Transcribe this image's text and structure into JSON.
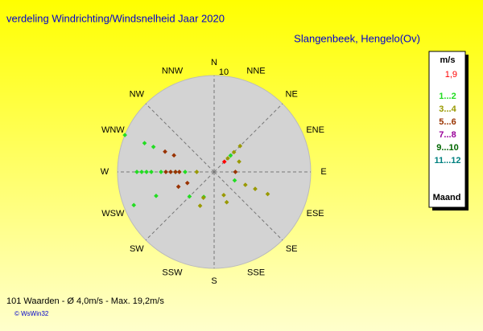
{
  "chart_data": {
    "type": "polar-scatter",
    "title": "verdeling Windrichting/Windsnelheid  Jaar 2020",
    "subtitle": "Slangenbeek, Hengelo(Ov)",
    "footer": "101 Waarden   -  Ø 4,0m/s  -  Max. 19,2m/s",
    "credit": "© WsWin32",
    "directions": [
      "N",
      "NNE",
      "NE",
      "ENE",
      "E",
      "ESE",
      "SE",
      "SSE",
      "S",
      "SSW",
      "SW",
      "WSW",
      "W",
      "WNW",
      "NW",
      "NNW"
    ],
    "rlim": [
      0,
      10
    ],
    "rticks": [
      10
    ],
    "legend_title": "m/s",
    "calm": {
      "label": "1,9",
      "color": "#ff0000",
      "direction": "NE",
      "value": 1.5
    },
    "legend_footer": "Maand",
    "series": [
      {
        "name": "1...2",
        "color": "#22dd22",
        "direction": [
          "WNW",
          "WNW",
          "WNW",
          "W",
          "W",
          "W",
          "W",
          "W",
          "W",
          "WSW",
          "WSW",
          "SW",
          "SSW",
          "NE",
          "ESE",
          "W"
        ],
        "values": [
          10,
          7.8,
          6.8,
          8,
          7.5,
          7,
          6.5,
          5.5,
          4,
          9,
          6.5,
          3.6,
          2.8,
          2.4,
          2.3,
          3
        ]
      },
      {
        "name": "3...4",
        "color": "#999900",
        "direction": [
          "NE",
          "NE",
          "NE",
          "ESE",
          "ESE",
          "ESE",
          "SSE",
          "SSE",
          "SSW",
          "SSW",
          "W",
          "ENE"
        ],
        "values": [
          3.8,
          2.9,
          2,
          6,
          4.6,
          3.5,
          3.4,
          2.6,
          3.8,
          2.9,
          1.8,
          2.8
        ]
      },
      {
        "name": "5...6",
        "color": "#993300",
        "direction": [
          "W",
          "W",
          "W",
          "W",
          "WNW",
          "WNW",
          "WSW",
          "WSW",
          "E"
        ],
        "values": [
          5,
          4.5,
          4,
          3.6,
          5.5,
          4.5,
          4,
          3,
          2.2
        ]
      },
      {
        "name": "7...8",
        "color": "#990099",
        "direction": [],
        "values": []
      },
      {
        "name": "9...10",
        "color": "#006600",
        "direction": [],
        "values": []
      },
      {
        "name": "11...12",
        "color": "#008080",
        "direction": [],
        "values": []
      }
    ]
  }
}
